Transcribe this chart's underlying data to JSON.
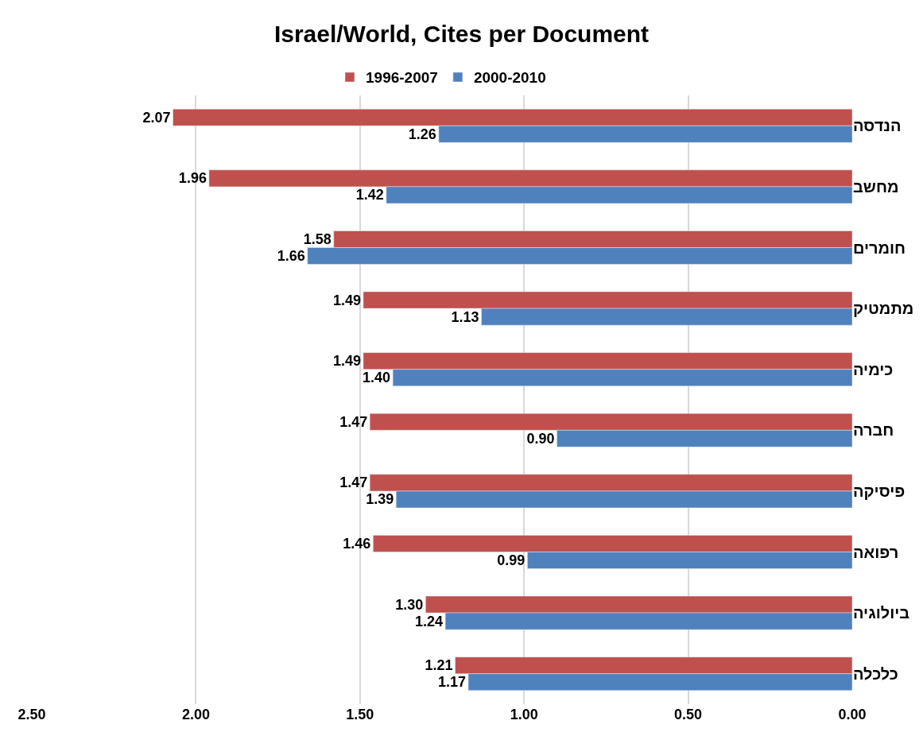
{
  "chart_data": {
    "type": "bar",
    "orientation": "horizontal",
    "title": "Israel/World, Cites per Document",
    "categories": [
      "הנדסה",
      "מחשב",
      "חומרים",
      "מתמטיק",
      "כימיה",
      "חברה",
      "פיסיקה",
      "רפואה",
      "ביולוגיה",
      "כלכלה"
    ],
    "series": [
      {
        "name": "1996-2007",
        "color": "#c0504d",
        "values": [
          2.07,
          1.96,
          1.58,
          1.49,
          1.49,
          1.47,
          1.47,
          1.46,
          1.3,
          1.21
        ],
        "value_labels": [
          "2.07",
          "1.96",
          "1.58",
          "1.49",
          "1.49",
          "1.47",
          "1.47",
          "1.46",
          "1.30",
          "1.21"
        ]
      },
      {
        "name": "2000-2010",
        "color": "#4f81bd",
        "values": [
          1.26,
          1.42,
          1.66,
          1.13,
          1.4,
          0.9,
          1.39,
          0.99,
          1.24,
          1.17
        ],
        "value_labels": [
          "1.26",
          "1.42",
          "1.66",
          "1.13",
          "1.40",
          "0.90",
          "1.39",
          "0.99",
          "1.24",
          "1.17"
        ]
      }
    ],
    "xlim": [
      2.5,
      0
    ],
    "xticks": [
      {
        "value": 2.5,
        "label": "2.50"
      },
      {
        "value": 2,
        "label": "2.00"
      },
      {
        "value": 1.5,
        "label": "1.50"
      },
      {
        "value": 1,
        "label": "1.00"
      },
      {
        "value": 0.5,
        "label": "0.50"
      },
      {
        "value": 0,
        "label": "0.00"
      }
    ],
    "grid": "x",
    "legend": "top"
  }
}
